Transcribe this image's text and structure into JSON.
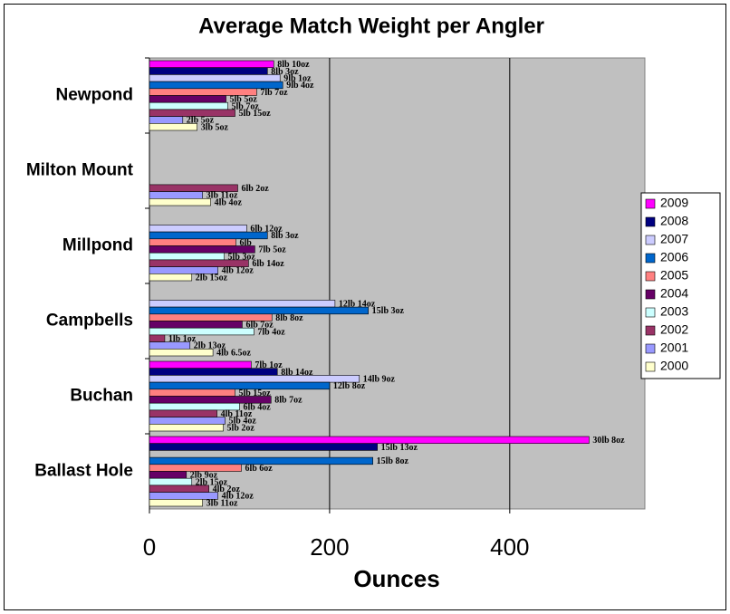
{
  "chart_data": {
    "type": "hbar",
    "title": "Average Match Weight per Angler",
    "x_label": "Ounces",
    "categories": [
      "Newpond",
      "Milton Mount",
      "Millpond",
      "Campbells",
      "Buchan",
      "Ballast Hole"
    ],
    "xlim": [
      0,
      550
    ],
    "xticks": [
      0,
      200,
      400
    ],
    "grid": true,
    "legend": "right",
    "background": "#c0c0c0",
    "series": [
      {
        "name": "2009",
        "color": "#ff00ff",
        "values": [
          138,
          null,
          null,
          null,
          113,
          488
        ],
        "value_labels": [
          "8lb 10oz",
          null,
          null,
          null,
          "7lb 1oz",
          "30lb 8oz"
        ]
      },
      {
        "name": "2008",
        "color": "#000080",
        "values": [
          131,
          null,
          null,
          null,
          142,
          253
        ],
        "value_labels": [
          "8lb 3oz",
          null,
          null,
          null,
          "8lb 14oz",
          "15lb 13oz"
        ]
      },
      {
        "name": "2007",
        "color": "#ccccff",
        "values": [
          145,
          null,
          108,
          206,
          233,
          null
        ],
        "value_labels": [
          "9lb 1oz",
          null,
          "6lb 12oz",
          "12lb 14oz",
          "14lb 9oz",
          null
        ]
      },
      {
        "name": "2006",
        "color": "#0066cc",
        "values": [
          148,
          null,
          131,
          243,
          200,
          248
        ],
        "value_labels": [
          "9lb 4oz",
          null,
          "8lb 3oz",
          "15lb 3oz",
          "12lb 8oz",
          "15lb 8oz"
        ]
      },
      {
        "name": "2005",
        "color": "#ff8080",
        "values": [
          119,
          null,
          96,
          136,
          95,
          102
        ],
        "value_labels": [
          "7lb 7oz",
          null,
          "6lb",
          "8lb 8oz",
          "5lb 15oz",
          "6lb 6oz"
        ]
      },
      {
        "name": "2004",
        "color": "#660066",
        "values": [
          85,
          null,
          117,
          103,
          135,
          41
        ],
        "value_labels": [
          "5lb 5oz",
          null,
          "7lb 5oz",
          "6lb 7oz",
          "8lb 7oz",
          "2lb 9oz"
        ]
      },
      {
        "name": "2003",
        "color": "#ccffff",
        "values": [
          87,
          null,
          83,
          116,
          100,
          47
        ],
        "value_labels": [
          "5lb 7oz",
          null,
          "5lb 3oz",
          "7lb 4oz",
          "6lb 4oz",
          "2lb 15oz"
        ]
      },
      {
        "name": "2002",
        "color": "#993366",
        "values": [
          95,
          98,
          110,
          17,
          75,
          66
        ],
        "value_labels": [
          "5lb 15oz",
          "6lb 2oz",
          "6lb 14oz",
          "1lb 1oz",
          "4lb 11oz",
          "4lb 2oz"
        ]
      },
      {
        "name": "2001",
        "color": "#9999ff",
        "values": [
          37,
          59,
          76,
          45,
          84,
          76
        ],
        "value_labels": [
          "2lb 5oz",
          "3lb 11oz",
          "4lb 12oz",
          "2lb 13oz",
          "5lb 4oz",
          "4lb 12oz"
        ]
      },
      {
        "name": "2000",
        "color": "#ffffcc",
        "values": [
          53,
          68,
          47,
          70.5,
          82,
          59
        ],
        "value_labels": [
          "3lb 5oz",
          "4lb 4oz",
          "2lb 15oz",
          "4lb 6.5oz",
          "5lb 2oz",
          "3lb 11oz"
        ]
      }
    ]
  }
}
